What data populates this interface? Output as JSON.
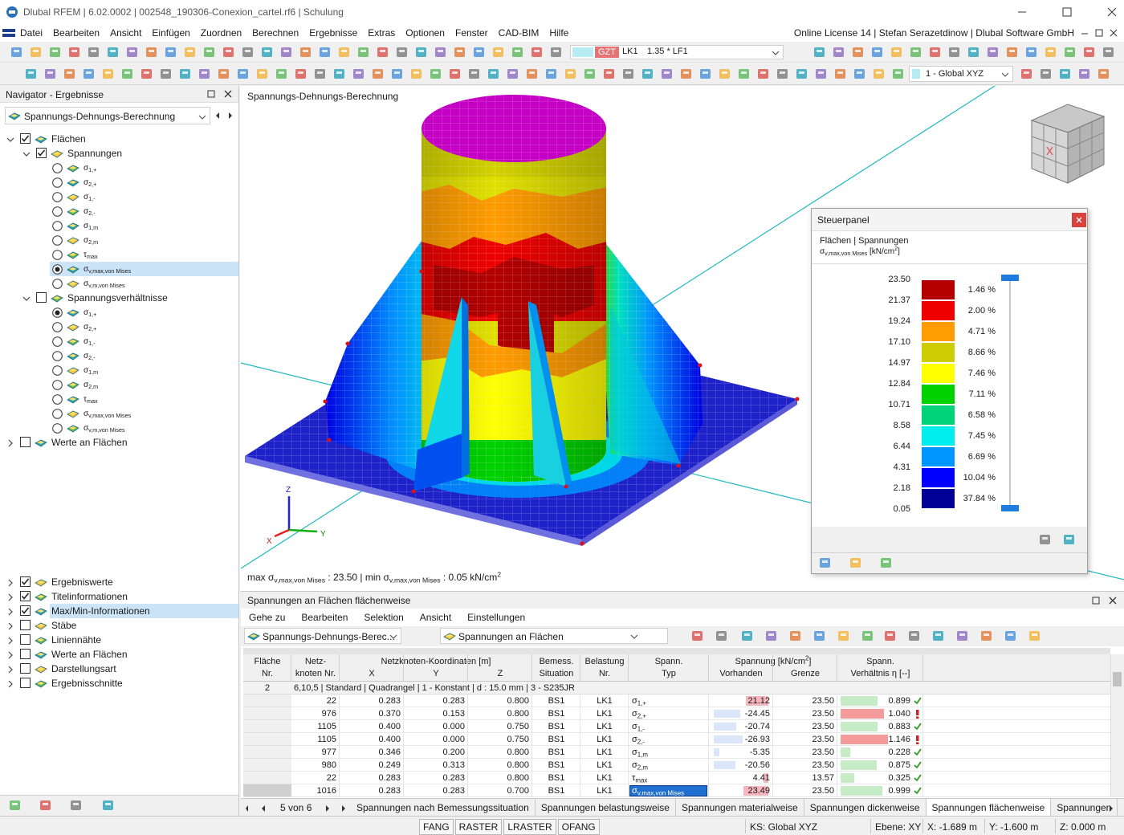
{
  "title_bar": {
    "text": "Dlubal RFEM | 6.02.0002 | 002548_190306-Conexion_cartel.rf6 | Schulung"
  },
  "menu": {
    "items": [
      "Datei",
      "Bearbeiten",
      "Ansicht",
      "Einfügen",
      "Zuordnen",
      "Berechnen",
      "Ergebnisse",
      "Extras",
      "Optionen",
      "Fenster",
      "CAD-BIM",
      "Hilfe"
    ],
    "license": "Online License 14 | Stefan Serazetdinow | Dlubal Software GmbH"
  },
  "toolbar": {
    "combo_type": "GZT",
    "combo_case": "LK1",
    "combo_formula": "1.35 * LF1",
    "coord_system": "1 - Global XYZ"
  },
  "navigator": {
    "title": "Navigator - Ergebnisse",
    "dropdown": "Spannungs-Dehnungs-Berechnung",
    "tree": [
      {
        "label": "Flächen",
        "level": 0,
        "control": "check",
        "on": true,
        "expander": "open",
        "selected": false
      },
      {
        "label": "Spannungen",
        "level": 1,
        "control": "check",
        "on": true,
        "expander": "open",
        "selected": false
      },
      {
        "label": [
          {
            "t": "σ"
          },
          {
            "sub": "1,+"
          }
        ],
        "level": 2,
        "control": "radio",
        "on": false,
        "selected": false
      },
      {
        "label": [
          {
            "t": "σ"
          },
          {
            "sub": "2,+"
          }
        ],
        "level": 2,
        "control": "radio",
        "on": false,
        "selected": false
      },
      {
        "label": [
          {
            "t": "σ"
          },
          {
            "sub": "1,-"
          }
        ],
        "level": 2,
        "control": "radio",
        "on": false,
        "selected": false
      },
      {
        "label": [
          {
            "t": "σ"
          },
          {
            "sub": "2,-"
          }
        ],
        "level": 2,
        "control": "radio",
        "on": false,
        "selected": false
      },
      {
        "label": [
          {
            "t": "σ"
          },
          {
            "sub": "1,m"
          }
        ],
        "level": 2,
        "control": "radio",
        "on": false,
        "selected": false
      },
      {
        "label": [
          {
            "t": "σ"
          },
          {
            "sub": "2,m"
          }
        ],
        "level": 2,
        "control": "radio",
        "on": false,
        "selected": false
      },
      {
        "label": [
          {
            "t": "τ"
          },
          {
            "sub": "max"
          }
        ],
        "level": 2,
        "control": "radio",
        "on": false,
        "selected": false
      },
      {
        "label": [
          {
            "t": "σ"
          },
          {
            "sub": "v,max,von Mises"
          }
        ],
        "level": 2,
        "control": "radio",
        "on": true,
        "selected": true
      },
      {
        "label": [
          {
            "t": "σ"
          },
          {
            "sub": "v,m,von Mises"
          }
        ],
        "level": 2,
        "control": "radio",
        "on": false,
        "selected": false
      },
      {
        "label": "Spannungsverhältnisse",
        "level": 1,
        "control": "check",
        "on": false,
        "expander": "open",
        "selected": false
      },
      {
        "label": [
          {
            "t": "σ"
          },
          {
            "sub": "1,+"
          }
        ],
        "level": 2,
        "control": "radio",
        "on": true,
        "selected": false
      },
      {
        "label": [
          {
            "t": "σ"
          },
          {
            "sub": "2,+"
          }
        ],
        "level": 2,
        "control": "radio",
        "on": false,
        "selected": false
      },
      {
        "label": [
          {
            "t": "σ"
          },
          {
            "sub": "1,-"
          }
        ],
        "level": 2,
        "control": "radio",
        "on": false,
        "selected": false
      },
      {
        "label": [
          {
            "t": "σ"
          },
          {
            "sub": "2,-"
          }
        ],
        "level": 2,
        "control": "radio",
        "on": false,
        "selected": false
      },
      {
        "label": [
          {
            "t": "σ"
          },
          {
            "sub": "1,m"
          }
        ],
        "level": 2,
        "control": "radio",
        "on": false,
        "selected": false
      },
      {
        "label": [
          {
            "t": "σ"
          },
          {
            "sub": "2,m"
          }
        ],
        "level": 2,
        "control": "radio",
        "on": false,
        "selected": false
      },
      {
        "label": [
          {
            "t": "τ"
          },
          {
            "sub": "max"
          }
        ],
        "level": 2,
        "control": "radio",
        "on": false,
        "selected": false
      },
      {
        "label": [
          {
            "t": "σ"
          },
          {
            "sub": "v,max,von Mises"
          }
        ],
        "level": 2,
        "control": "radio",
        "on": false,
        "selected": false
      },
      {
        "label": [
          {
            "t": "σ"
          },
          {
            "sub": "v,m,von Mises"
          }
        ],
        "level": 2,
        "control": "radio",
        "on": false,
        "selected": false
      },
      {
        "label": "Werte an Flächen",
        "level": 0,
        "control": "check",
        "on": false,
        "expander": "closed",
        "selected": false
      }
    ],
    "display_items": [
      {
        "label": "Ergebniswerte",
        "on": true,
        "selected": false
      },
      {
        "label": "Titelinformationen",
        "on": true,
        "selected": false
      },
      {
        "label": "Max/Min-Informationen",
        "on": true,
        "selected": true
      },
      {
        "label": "Stäbe",
        "on": false,
        "selected": false
      },
      {
        "label": "Liniennähte",
        "on": false,
        "selected": false
      },
      {
        "label": "Werte an Flächen",
        "on": false,
        "selected": false
      },
      {
        "label": "Darstellungsart",
        "on": false,
        "selected": false
      },
      {
        "label": "Ergebnisschnitte",
        "on": false,
        "selected": false
      }
    ]
  },
  "viewport": {
    "label": "Spannungs-Dehnungs-Berechnung",
    "axes": {
      "x": "X",
      "y": "Y",
      "z": "Z"
    },
    "summary": [
      {
        "t": "max σ"
      },
      {
        "sub": "v,max,von Mises"
      },
      {
        "t": " : 23.50 | min σ"
      },
      {
        "sub": "v,max,von Mises"
      },
      {
        "t": " : 0.05 kN/cm"
      },
      {
        "sup": "2"
      }
    ]
  },
  "control_panel": {
    "title": "Steuerpanel",
    "heading": "Flächen | Spannungen",
    "quantity": [
      {
        "t": "σ"
      },
      {
        "sub": "v,max,von Mises"
      },
      {
        "t": " [kN/cm"
      },
      {
        "sup": "2"
      },
      {
        "t": "]"
      }
    ],
    "legend": {
      "values": [
        "23.50",
        "21.37",
        "19.24",
        "17.10",
        "14.97",
        "12.84",
        "10.71",
        "8.58",
        "6.44",
        "4.31",
        "2.18",
        "0.05"
      ],
      "colors": [
        "#b40000",
        "#ee0000",
        "#ff9c00",
        "#cccc00",
        "#ffff00",
        "#00d200",
        "#00d27a",
        "#00eeee",
        "#0096ff",
        "#0000ff",
        "#000096"
      ],
      "percents": [
        "1.46 %",
        "2.00 %",
        "4.71 %",
        "8.66 %",
        "7.46 %",
        "7.11 %",
        "6.58 %",
        "7.45 %",
        "6.69 %",
        "10.04 %",
        "37.84 %"
      ]
    }
  },
  "table_panel": {
    "title": "Spannungen an Flächen flächenweise",
    "menu": [
      "Gehe zu",
      "Bearbeiten",
      "Selektion",
      "Ansicht",
      "Einstellungen"
    ],
    "dropdowns": [
      "Spannungs-Dehnungs-Berec...",
      "Spannungen an Flächen"
    ],
    "columns": [
      {
        "lines": [
          "Fläche",
          "Nr."
        ]
      },
      {
        "lines": [
          "Netz-",
          "knoten Nr."
        ]
      },
      {
        "label": "Netzknoten-Koordinaten [m]",
        "sub": [
          "X",
          "Y",
          "Z"
        ]
      },
      {
        "lines": [
          "Bemess.",
          "Situation"
        ]
      },
      {
        "lines": [
          "Belastung",
          "Nr."
        ]
      },
      {
        "lines": [
          "Spann.",
          "Typ"
        ]
      },
      {
        "label": [
          {
            "t": "Spannung [kN/cm"
          },
          {
            "sup": "2"
          },
          {
            "t": "]"
          }
        ],
        "sub": [
          "Vorhanden",
          "Grenze"
        ]
      },
      {
        "lines": [
          "Spann.",
          "Verhältnis η [--]"
        ]
      }
    ],
    "group_row": {
      "surface": "2",
      "description": "6,10,5 | Standard | Quadrangel | 1 - Konstant | d : 15.0 mm | 3 - S235JR"
    },
    "rows": [
      {
        "node": "22",
        "x": "0.283",
        "y": "0.283",
        "z": "0.800",
        "situation": "BS1",
        "load": "LK1",
        "type": [
          {
            "t": "σ"
          },
          {
            "sub": "1,+"
          }
        ],
        "actual": "21.12",
        "limit": "23.50",
        "ratio": "0.899",
        "ok": true,
        "selected": false
      },
      {
        "node": "976",
        "x": "0.370",
        "y": "0.153",
        "z": "0.800",
        "situation": "BS1",
        "load": "LK1",
        "type": [
          {
            "t": "σ"
          },
          {
            "sub": "2,+"
          }
        ],
        "actual": "-24.45",
        "limit": "23.50",
        "ratio": "1.040",
        "ok": false,
        "selected": false
      },
      {
        "node": "1105",
        "x": "0.400",
        "y": "0.000",
        "z": "0.750",
        "situation": "BS1",
        "load": "LK1",
        "type": [
          {
            "t": "σ"
          },
          {
            "sub": "1,-"
          }
        ],
        "actual": "-20.74",
        "limit": "23.50",
        "ratio": "0.883",
        "ok": true,
        "selected": false
      },
      {
        "node": "1105",
        "x": "0.400",
        "y": "0.000",
        "z": "0.750",
        "situation": "BS1",
        "load": "LK1",
        "type": [
          {
            "t": "σ"
          },
          {
            "sub": "2,-"
          }
        ],
        "actual": "-26.93",
        "limit": "23.50",
        "ratio": "1.146",
        "ok": false,
        "selected": false
      },
      {
        "node": "977",
        "x": "0.346",
        "y": "0.200",
        "z": "0.800",
        "situation": "BS1",
        "load": "LK1",
        "type": [
          {
            "t": "σ"
          },
          {
            "sub": "1,m"
          }
        ],
        "actual": "-5.35",
        "limit": "23.50",
        "ratio": "0.228",
        "ok": true,
        "selected": false
      },
      {
        "node": "980",
        "x": "0.249",
        "y": "0.313",
        "z": "0.800",
        "situation": "BS1",
        "load": "LK1",
        "type": [
          {
            "t": "σ"
          },
          {
            "sub": "2,m"
          }
        ],
        "actual": "-20.56",
        "limit": "23.50",
        "ratio": "0.875",
        "ok": true,
        "selected": false
      },
      {
        "node": "22",
        "x": "0.283",
        "y": "0.283",
        "z": "0.800",
        "situation": "BS1",
        "load": "LK1",
        "type": [
          {
            "t": "τ"
          },
          {
            "sub": "max"
          }
        ],
        "actual": "4.41",
        "limit": "13.57",
        "ratio": "0.325",
        "ok": true,
        "selected": false
      },
      {
        "node": "1016",
        "x": "0.283",
        "y": "0.283",
        "z": "0.700",
        "situation": "BS1",
        "load": "LK1",
        "type": [
          {
            "t": "σ"
          },
          {
            "sub": "v,max,von Mises"
          }
        ],
        "actual": "23.49",
        "limit": "23.50",
        "ratio": "0.999",
        "ok": true,
        "selected": true
      }
    ],
    "pagination": "5 von 6",
    "tabs": [
      "Spannungen nach Bemessungssituation",
      "Spannungen belastungsweise",
      "Spannungen materialweise",
      "Spannungen dickenweise",
      "Spannungen flächenweise",
      "Spannungen"
    ],
    "active_tab": 4
  },
  "status_bar": {
    "toggles": [
      "FANG",
      "RASTER",
      "LRASTER",
      "OFANG"
    ],
    "fields": [
      "KS: Global XYZ",
      "Ebene: XY",
      "X: -1.689 m",
      "Y: -1.600 m",
      "Z: 0.000 m"
    ]
  }
}
